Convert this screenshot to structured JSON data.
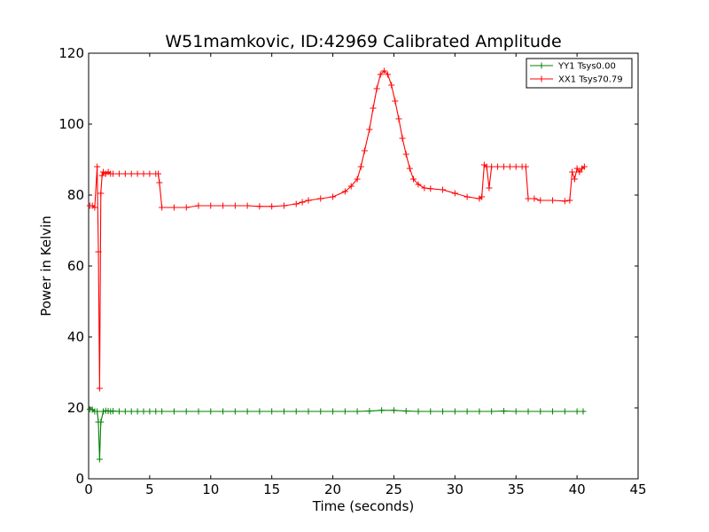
{
  "chart_data": {
    "type": "line",
    "title": "W51mamkovic, ID:42969 Calibrated Amplitude",
    "xlabel": "Time (seconds)",
    "ylabel": "Power in Kelvin",
    "xlim": [
      0,
      45
    ],
    "ylim": [
      0,
      120
    ],
    "xticks": [
      0,
      5,
      10,
      15,
      20,
      25,
      30,
      35,
      40,
      45
    ],
    "yticks": [
      0,
      20,
      40,
      60,
      80,
      100,
      120
    ],
    "grid": false,
    "legend_position": "top-right",
    "series": [
      {
        "name": "YY1 Tsys0.00",
        "color": "#008000",
        "marker": "+",
        "x": [
          0.1,
          0.3,
          0.5,
          0.7,
          0.8,
          0.9,
          1.0,
          1.2,
          1.4,
          1.6,
          1.8,
          2.0,
          2.5,
          3.0,
          3.5,
          4.0,
          4.5,
          5.0,
          5.5,
          6.0,
          7.0,
          8.0,
          9.0,
          10.0,
          11.0,
          12.0,
          13.0,
          14.0,
          15.0,
          16.0,
          17.0,
          18.0,
          19.0,
          20.0,
          21.0,
          22.0,
          23.0,
          24.0,
          25.0,
          26.0,
          27.0,
          28.0,
          29.0,
          30.0,
          31.0,
          32.0,
          33.0,
          34.0,
          35.0,
          36.0,
          37.0,
          38.0,
          39.0,
          40.0,
          40.5
        ],
        "y": [
          19.6,
          19.5,
          19.0,
          19.0,
          16.0,
          5.5,
          16.0,
          19.0,
          19.2,
          19.1,
          19.0,
          19.1,
          19.0,
          19.0,
          19.0,
          19.0,
          19.0,
          19.0,
          19.0,
          19.0,
          19.0,
          19.0,
          19.0,
          19.0,
          19.0,
          19.0,
          19.0,
          19.0,
          19.0,
          19.0,
          19.0,
          19.0,
          19.0,
          19.0,
          19.0,
          19.0,
          19.1,
          19.3,
          19.3,
          19.1,
          19.0,
          19.0,
          19.0,
          19.0,
          19.0,
          19.0,
          19.0,
          19.1,
          19.0,
          19.0,
          19.0,
          19.0,
          19.0,
          19.0,
          19.0
        ]
      },
      {
        "name": "XX1 Tsys70.79",
        "color": "#ff0000",
        "marker": "+",
        "x": [
          0.1,
          0.3,
          0.5,
          0.7,
          0.8,
          0.9,
          1.0,
          1.1,
          1.2,
          1.4,
          1.6,
          1.8,
          2.0,
          2.5,
          3.0,
          3.5,
          4.0,
          4.5,
          5.0,
          5.5,
          5.7,
          5.8,
          6.0,
          7.0,
          8.0,
          9.0,
          10.0,
          11.0,
          12.0,
          13.0,
          14.0,
          15.0,
          16.0,
          17.0,
          17.5,
          18.0,
          19.0,
          20.0,
          21.0,
          21.5,
          22.0,
          22.3,
          22.6,
          23.0,
          23.3,
          23.6,
          23.9,
          24.2,
          24.5,
          24.8,
          25.1,
          25.4,
          25.7,
          26.0,
          26.3,
          26.6,
          27.0,
          27.5,
          28.0,
          29.0,
          30.0,
          31.0,
          32.0,
          32.2,
          32.4,
          32.6,
          32.8,
          33.0,
          33.5,
          34.0,
          34.5,
          35.0,
          35.5,
          35.8,
          36.0,
          36.5,
          37.0,
          38.0,
          39.0,
          39.4,
          39.6,
          39.8,
          40.0,
          40.2,
          40.4,
          40.6
        ],
        "y": [
          77.0,
          77.0,
          76.5,
          88.0,
          64.0,
          25.5,
          80.5,
          85.5,
          86.5,
          86.0,
          86.5,
          86.0,
          86.0,
          86.0,
          86.0,
          86.0,
          86.0,
          86.0,
          86.0,
          86.0,
          86.0,
          83.5,
          76.5,
          76.5,
          76.5,
          77.0,
          77.0,
          77.0,
          77.0,
          77.0,
          76.8,
          76.8,
          77.0,
          77.5,
          78.0,
          78.5,
          79.0,
          79.5,
          81.0,
          82.5,
          84.5,
          88.0,
          92.5,
          98.5,
          104.5,
          110.0,
          114.0,
          115.0,
          114.0,
          111.0,
          106.5,
          101.5,
          96.0,
          91.5,
          87.5,
          84.5,
          83.0,
          82.0,
          81.8,
          81.5,
          80.5,
          79.5,
          79.0,
          79.5,
          88.5,
          88.0,
          82.0,
          88.0,
          88.0,
          88.0,
          88.0,
          88.0,
          88.0,
          88.0,
          79.0,
          79.0,
          78.5,
          78.5,
          78.3,
          78.5,
          86.5,
          84.5,
          87.5,
          86.5,
          87.5,
          88.0
        ]
      }
    ]
  }
}
